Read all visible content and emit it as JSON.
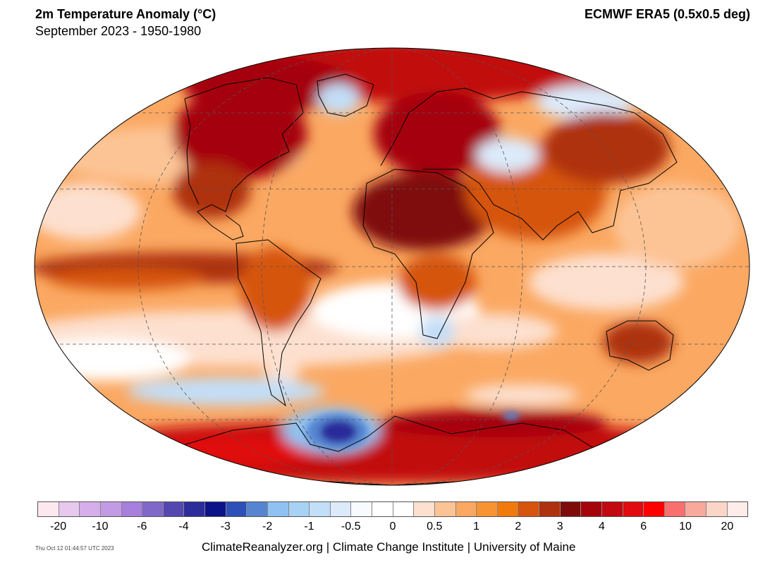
{
  "header": {
    "title": "2m Temperature Anomaly (°C)",
    "subtitle": "September 2023 - 1950-1980",
    "source": "ECMWF ERA5 (0.5x0.5 deg)"
  },
  "map": {
    "projection": "Robinson-like ellipse",
    "graticule": "dashed",
    "dominant_anomaly": "warm",
    "cold_region": "Weddell Sea / Antarctic Peninsula"
  },
  "colorbar": {
    "tick_labels": [
      "-20",
      "-10",
      "-6",
      "-4",
      "-3",
      "-2",
      "-1",
      "-0.5",
      "0",
      "0.5",
      "1",
      "2",
      "3",
      "4",
      "6",
      "10",
      "20"
    ],
    "colors": [
      "#fde8f0",
      "#e8c8ef",
      "#d6aeea",
      "#c29be4",
      "#a77fdc",
      "#7f68c8",
      "#5547b0",
      "#2c2c9a",
      "#0c128a",
      "#2d4fb8",
      "#5585d0",
      "#8fc2f2",
      "#a8d2f4",
      "#c3def7",
      "#dceafa",
      "#f7fbff",
      "#ffffff",
      "#ffffff",
      "#fde0cf",
      "#fcc495",
      "#fba862",
      "#f79333",
      "#f27a0c",
      "#d6540c",
      "#ae320d",
      "#7f0a0a",
      "#a5040a",
      "#c20810",
      "#e10a0f",
      "#fe0000",
      "#f96f6d",
      "#f9a99c",
      "#fbd6c8",
      "#fdece8"
    ]
  },
  "footer": {
    "timestamp": "Thu Oct 12 01:44:57 UTC 2023",
    "credit": "ClimateReanalyzer.org | Climate Change Institute | University of Maine"
  }
}
